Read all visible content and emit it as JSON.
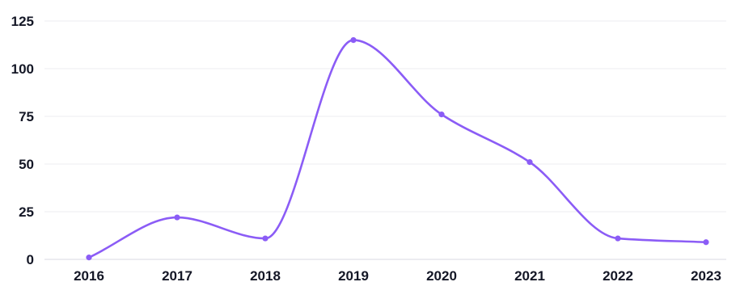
{
  "chart_data": {
    "type": "line",
    "title": "",
    "xlabel": "",
    "ylabel": "",
    "categories": [
      "2016",
      "2017",
      "2018",
      "2019",
      "2020",
      "2021",
      "2022",
      "2023"
    ],
    "series": [
      {
        "values": [
          1,
          22,
          11,
          115,
          76,
          51,
          11,
          9
        ],
        "color": "#8b5cf6"
      }
    ],
    "ylim": [
      0,
      125
    ],
    "yticks": [
      0,
      25,
      50,
      75,
      100,
      125
    ],
    "ytick_labels": [
      "0",
      "25",
      "50",
      "75",
      "100",
      "125"
    ],
    "grid": true,
    "smooth": true,
    "markers": true,
    "legend": "none"
  }
}
